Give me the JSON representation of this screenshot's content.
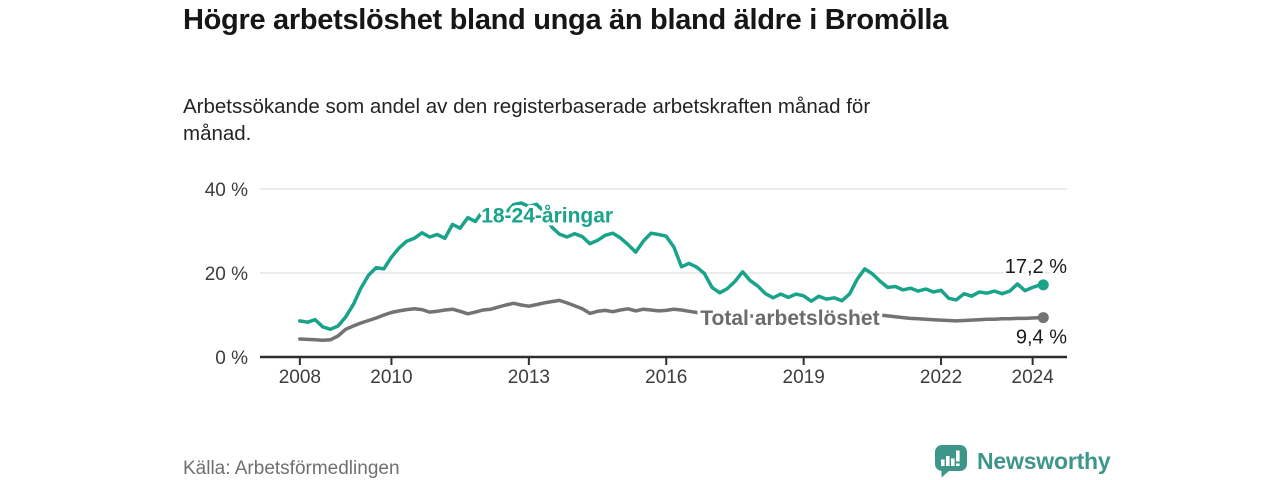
{
  "header": {
    "title": "Högre arbetslöshet bland unga än bland äldre i Bromölla",
    "subtitle": "Arbetssökande som andel av den registerbaserade arbetskraften månad för månad."
  },
  "chart_data": {
    "type": "line",
    "title": "Högre arbetslöshet bland unga än bland äldre i Bromölla",
    "xlabel": "",
    "ylabel": "",
    "grid": "horizontal",
    "legend_position": "inline-labels",
    "x_domain": [
      2007.13,
      2024.75
    ],
    "ylim": [
      0,
      41
    ],
    "x_ticks": [
      2008,
      2010,
      2013,
      2016,
      2019,
      2022,
      2024
    ],
    "y_ticks": [
      {
        "value": 0,
        "label": "0 %"
      },
      {
        "value": 20,
        "label": "20 %"
      },
      {
        "value": 40,
        "label": "40 %"
      }
    ],
    "x_start": 2008,
    "x_step_years": 0.166667,
    "series": [
      {
        "name": "Total arbetslöshet",
        "color": "#737373",
        "label_color": "#6b6b6b",
        "inline_label": {
          "text": "Total arbetslöshet",
          "x": 2018.7,
          "y": 7.6
        },
        "end_label": "9,4 %",
        "end_label_dy": 26,
        "values": [
          4.3,
          4.2,
          4.1,
          4.0,
          4.1,
          5.0,
          6.6,
          7.4,
          8.1,
          8.7,
          9.3,
          10.0,
          10.6,
          11.0,
          11.3,
          11.5,
          11.3,
          10.7,
          10.9,
          11.2,
          11.4,
          10.9,
          10.3,
          10.7,
          11.2,
          11.4,
          11.9,
          12.4,
          12.8,
          12.4,
          12.1,
          12.5,
          12.9,
          13.2,
          13.5,
          12.9,
          12.2,
          11.5,
          10.4,
          10.9,
          11.1,
          10.8,
          11.2,
          11.5,
          11.0,
          11.4,
          11.2,
          11.0,
          11.1,
          11.4,
          11.2,
          10.9,
          10.6,
          10.4,
          10.3,
          10.5,
          10.4,
          10.2,
          10.0,
          9.8,
          9.6,
          9.5,
          9.4,
          9.5,
          9.3,
          9.2,
          9.1,
          9.2,
          9.3,
          9.4,
          9.5,
          9.6,
          9.8,
          10.2,
          10.5,
          10.3,
          10.0,
          9.8,
          9.6,
          9.4,
          9.2,
          9.1,
          9.0,
          8.9,
          8.8,
          8.7,
          8.6,
          8.7,
          8.8,
          8.9,
          9.0,
          9.0,
          9.1,
          9.1,
          9.2,
          9.2,
          9.3,
          9.4
        ]
      },
      {
        "name": "18-24-åringar",
        "color": "#19a38b",
        "label_color": "#19a38b",
        "inline_label": {
          "text": "18-24-åringar",
          "x": 2013.4,
          "y": 32.1
        },
        "end_label": "17,2 %",
        "end_label_dy": -12,
        "values": [
          8.6,
          8.3,
          8.9,
          7.2,
          6.6,
          7.4,
          9.5,
          12.5,
          16.4,
          19.5,
          21.3,
          21.0,
          23.8,
          26.0,
          27.6,
          28.3,
          29.6,
          28.6,
          29.2,
          28.3,
          31.6,
          30.7,
          33.2,
          32.3,
          34.9,
          35.3,
          32.8,
          34.4,
          36.3,
          36.7,
          35.9,
          36.4,
          34.6,
          31.0,
          29.3,
          28.6,
          29.4,
          28.7,
          27.0,
          27.8,
          29.0,
          29.5,
          28.4,
          26.8,
          25.0,
          27.6,
          29.5,
          29.2,
          28.8,
          26.2,
          21.5,
          22.3,
          21.4,
          19.9,
          16.6,
          15.3,
          16.3,
          18.0,
          20.3,
          18.2,
          16.9,
          15.1,
          14.1,
          15.0,
          14.2,
          15.0,
          14.6,
          13.3,
          14.5,
          13.8,
          14.1,
          13.4,
          15.0,
          18.5,
          21.0,
          19.8,
          18.1,
          16.6,
          16.8,
          16.0,
          16.4,
          15.7,
          16.2,
          15.5,
          15.9,
          14.0,
          13.6,
          15.1,
          14.5,
          15.5,
          15.2,
          15.7,
          15.1,
          15.7,
          17.4,
          15.8,
          16.6,
          17.2
        ]
      }
    ]
  },
  "footer": {
    "source": "Källa: Arbetsförmedlingen",
    "logo_text": "Newsworthy"
  },
  "colors": {
    "accent_teal": "#19a38b",
    "line_gray": "#737373",
    "logo_teal": "#3e968b",
    "grid": "#d9d9d9",
    "axis": "#2e2e2e",
    "text_dark": "#161616"
  }
}
